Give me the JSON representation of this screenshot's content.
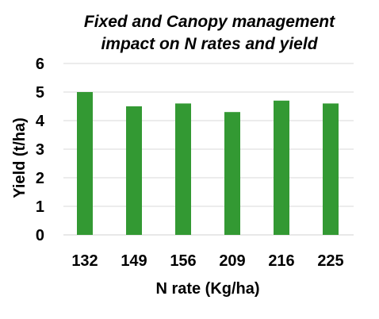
{
  "chart_data": {
    "type": "bar",
    "title_line1": "Fixed and Canopy management",
    "title_line2": "impact on N rates and yield",
    "xlabel": "N rate (Kg/ha)",
    "ylabel": "Yield (t/ha)",
    "categories": [
      "132",
      "149",
      "156",
      "209",
      "216",
      "225"
    ],
    "values": [
      5.0,
      4.5,
      4.6,
      4.3,
      4.7,
      4.6
    ],
    "ylim": [
      0,
      6
    ],
    "yticks": [
      "0",
      "1",
      "2",
      "3",
      "4",
      "5",
      "6"
    ],
    "grid": true,
    "legend": "none",
    "bar_color": "#339933"
  }
}
